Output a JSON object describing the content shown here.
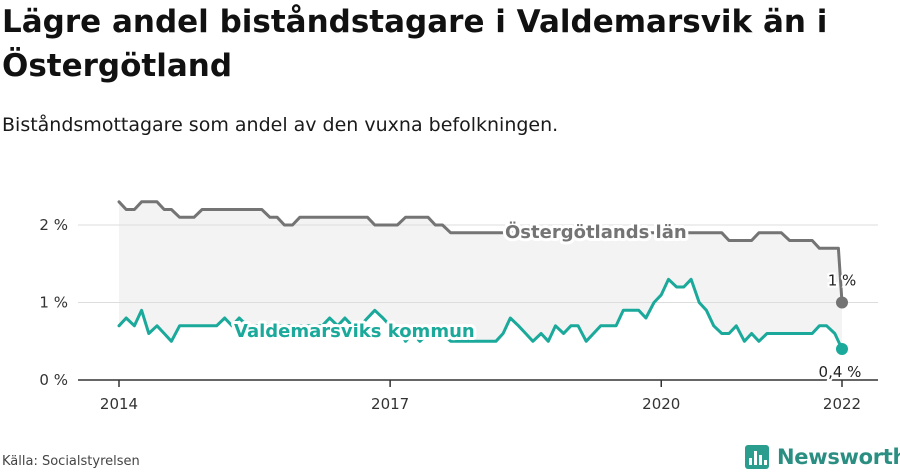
{
  "header": {
    "title": "Lägre andel biståndstagare i Valdemarsvik än i Östergötland",
    "subtitle": "Biståndsmottagare som andel av den vuxna befolkningen."
  },
  "footer": {
    "source": "Källa: Socialstyrelsen",
    "brand": "Newsworthy"
  },
  "colors": {
    "lan": "#747474",
    "kommun": "#1aa99a",
    "band": "#f3f3f3",
    "grid": "#dddddd",
    "axis": "#333333"
  },
  "chart_data": {
    "type": "line",
    "ylim": [
      0,
      2.5
    ],
    "xlim": [
      2014,
      2022.25
    ],
    "yticks": [
      {
        "value": 0,
        "label": "0 %"
      },
      {
        "value": 1,
        "label": "1 %"
      },
      {
        "value": 2,
        "label": "2 %"
      }
    ],
    "xticks": [
      {
        "value": 2014,
        "label": "2014"
      },
      {
        "value": 2017,
        "label": "2017"
      },
      {
        "value": 2020,
        "label": "2020"
      },
      {
        "value": 2022,
        "label": "2022"
      }
    ],
    "series": [
      {
        "key": "lan",
        "name": "Östergötlands län",
        "end_label": "1 %",
        "points": [
          [
            2014.0,
            2.3
          ],
          [
            2014.08,
            2.2
          ],
          [
            2014.17,
            2.2
          ],
          [
            2014.25,
            2.3
          ],
          [
            2014.33,
            2.3
          ],
          [
            2014.42,
            2.3
          ],
          [
            2014.5,
            2.2
          ],
          [
            2014.58,
            2.2
          ],
          [
            2014.67,
            2.1
          ],
          [
            2014.75,
            2.1
          ],
          [
            2014.83,
            2.1
          ],
          [
            2014.92,
            2.2
          ],
          [
            2015.0,
            2.2
          ],
          [
            2015.08,
            2.2
          ],
          [
            2015.17,
            2.2
          ],
          [
            2015.25,
            2.2
          ],
          [
            2015.33,
            2.2
          ],
          [
            2015.42,
            2.2
          ],
          [
            2015.5,
            2.2
          ],
          [
            2015.58,
            2.2
          ],
          [
            2015.67,
            2.1
          ],
          [
            2015.75,
            2.1
          ],
          [
            2015.83,
            2.0
          ],
          [
            2015.92,
            2.0
          ],
          [
            2016.0,
            2.1
          ],
          [
            2016.08,
            2.1
          ],
          [
            2016.17,
            2.1
          ],
          [
            2016.25,
            2.1
          ],
          [
            2016.33,
            2.1
          ],
          [
            2016.42,
            2.1
          ],
          [
            2016.5,
            2.1
          ],
          [
            2016.58,
            2.1
          ],
          [
            2016.67,
            2.1
          ],
          [
            2016.75,
            2.1
          ],
          [
            2016.83,
            2.0
          ],
          [
            2016.92,
            2.0
          ],
          [
            2017.0,
            2.0
          ],
          [
            2017.08,
            2.0
          ],
          [
            2017.17,
            2.1
          ],
          [
            2017.25,
            2.1
          ],
          [
            2017.33,
            2.1
          ],
          [
            2017.42,
            2.1
          ],
          [
            2017.5,
            2.0
          ],
          [
            2017.58,
            2.0
          ],
          [
            2017.67,
            1.9
          ],
          [
            2017.75,
            1.9
          ],
          [
            2017.83,
            1.9
          ],
          [
            2017.92,
            1.9
          ],
          [
            2018.0,
            1.9
          ],
          [
            2018.08,
            1.9
          ],
          [
            2018.17,
            1.9
          ],
          [
            2018.25,
            1.9
          ],
          [
            2018.33,
            1.9
          ],
          [
            2018.42,
            1.9
          ],
          [
            2018.5,
            1.9
          ],
          [
            2018.58,
            1.9
          ],
          [
            2018.67,
            1.9
          ],
          [
            2018.75,
            1.9
          ],
          [
            2018.83,
            1.9
          ],
          [
            2018.92,
            1.9
          ],
          [
            2019.0,
            1.9
          ],
          [
            2019.08,
            1.9
          ],
          [
            2019.17,
            1.9
          ],
          [
            2019.25,
            1.9
          ],
          [
            2019.33,
            1.9
          ],
          [
            2019.42,
            1.9
          ],
          [
            2019.5,
            1.9
          ],
          [
            2019.58,
            1.9
          ],
          [
            2019.67,
            1.9
          ],
          [
            2019.75,
            1.9
          ],
          [
            2019.83,
            1.9
          ],
          [
            2019.92,
            1.9
          ],
          [
            2020.0,
            1.9
          ],
          [
            2020.08,
            1.9
          ],
          [
            2020.17,
            1.9
          ],
          [
            2020.25,
            1.9
          ],
          [
            2020.33,
            1.9
          ],
          [
            2020.42,
            1.9
          ],
          [
            2020.5,
            1.9
          ],
          [
            2020.58,
            1.9
          ],
          [
            2020.67,
            1.9
          ],
          [
            2020.75,
            1.8
          ],
          [
            2020.83,
            1.8
          ],
          [
            2020.92,
            1.8
          ],
          [
            2021.0,
            1.8
          ],
          [
            2021.08,
            1.9
          ],
          [
            2021.17,
            1.9
          ],
          [
            2021.25,
            1.9
          ],
          [
            2021.33,
            1.9
          ],
          [
            2021.42,
            1.8
          ],
          [
            2021.5,
            1.8
          ],
          [
            2021.58,
            1.8
          ],
          [
            2021.67,
            1.8
          ],
          [
            2021.75,
            1.7
          ],
          [
            2021.83,
            1.7
          ],
          [
            2021.92,
            1.7
          ],
          [
            2021.96,
            1.7
          ],
          [
            2022.0,
            1.0
          ]
        ]
      },
      {
        "key": "kommun",
        "name": "Valdemarsviks kommun",
        "end_label": "0,4 %",
        "points": [
          [
            2014.0,
            0.7
          ],
          [
            2014.08,
            0.8
          ],
          [
            2014.17,
            0.7
          ],
          [
            2014.25,
            0.9
          ],
          [
            2014.33,
            0.6
          ],
          [
            2014.42,
            0.7
          ],
          [
            2014.5,
            0.6
          ],
          [
            2014.58,
            0.5
          ],
          [
            2014.67,
            0.7
          ],
          [
            2014.75,
            0.7
          ],
          [
            2014.83,
            0.7
          ],
          [
            2014.92,
            0.7
          ],
          [
            2015.0,
            0.7
          ],
          [
            2015.08,
            0.7
          ],
          [
            2015.17,
            0.8
          ],
          [
            2015.25,
            0.7
          ],
          [
            2015.33,
            0.8
          ],
          [
            2015.42,
            0.7
          ],
          [
            2015.5,
            0.7
          ],
          [
            2015.58,
            0.7
          ],
          [
            2015.67,
            0.7
          ],
          [
            2015.75,
            0.7
          ],
          [
            2015.83,
            0.7
          ],
          [
            2015.92,
            0.7
          ],
          [
            2016.0,
            0.7
          ],
          [
            2016.08,
            0.7
          ],
          [
            2016.17,
            0.7
          ],
          [
            2016.25,
            0.7
          ],
          [
            2016.33,
            0.8
          ],
          [
            2016.42,
            0.7
          ],
          [
            2016.5,
            0.8
          ],
          [
            2016.58,
            0.7
          ],
          [
            2016.67,
            0.7
          ],
          [
            2016.75,
            0.8
          ],
          [
            2016.83,
            0.9
          ],
          [
            2016.92,
            0.8
          ],
          [
            2017.0,
            0.7
          ],
          [
            2017.08,
            0.7
          ],
          [
            2017.17,
            0.5
          ],
          [
            2017.25,
            0.6
          ],
          [
            2017.33,
            0.5
          ],
          [
            2017.42,
            0.6
          ],
          [
            2017.5,
            0.6
          ],
          [
            2017.58,
            0.6
          ],
          [
            2017.67,
            0.5
          ],
          [
            2017.75,
            0.5
          ],
          [
            2017.83,
            0.5
          ],
          [
            2017.92,
            0.5
          ],
          [
            2018.0,
            0.5
          ],
          [
            2018.08,
            0.5
          ],
          [
            2018.17,
            0.5
          ],
          [
            2018.25,
            0.6
          ],
          [
            2018.33,
            0.8
          ],
          [
            2018.42,
            0.7
          ],
          [
            2018.5,
            0.6
          ],
          [
            2018.58,
            0.5
          ],
          [
            2018.67,
            0.6
          ],
          [
            2018.75,
            0.5
          ],
          [
            2018.83,
            0.7
          ],
          [
            2018.92,
            0.6
          ],
          [
            2019.0,
            0.7
          ],
          [
            2019.08,
            0.7
          ],
          [
            2019.17,
            0.5
          ],
          [
            2019.25,
            0.6
          ],
          [
            2019.33,
            0.7
          ],
          [
            2019.42,
            0.7
          ],
          [
            2019.5,
            0.7
          ],
          [
            2019.58,
            0.9
          ],
          [
            2019.67,
            0.9
          ],
          [
            2019.75,
            0.9
          ],
          [
            2019.83,
            0.8
          ],
          [
            2019.92,
            1.0
          ],
          [
            2020.0,
            1.1
          ],
          [
            2020.08,
            1.3
          ],
          [
            2020.17,
            1.2
          ],
          [
            2020.25,
            1.2
          ],
          [
            2020.33,
            1.3
          ],
          [
            2020.42,
            1.0
          ],
          [
            2020.5,
            0.9
          ],
          [
            2020.58,
            0.7
          ],
          [
            2020.67,
            0.6
          ],
          [
            2020.75,
            0.6
          ],
          [
            2020.83,
            0.7
          ],
          [
            2020.92,
            0.5
          ],
          [
            2021.0,
            0.6
          ],
          [
            2021.08,
            0.5
          ],
          [
            2021.17,
            0.6
          ],
          [
            2021.25,
            0.6
          ],
          [
            2021.33,
            0.6
          ],
          [
            2021.42,
            0.6
          ],
          [
            2021.5,
            0.6
          ],
          [
            2021.58,
            0.6
          ],
          [
            2021.67,
            0.6
          ],
          [
            2021.75,
            0.7
          ],
          [
            2021.83,
            0.7
          ],
          [
            2021.92,
            0.6
          ],
          [
            2022.0,
            0.4
          ]
        ]
      }
    ]
  }
}
